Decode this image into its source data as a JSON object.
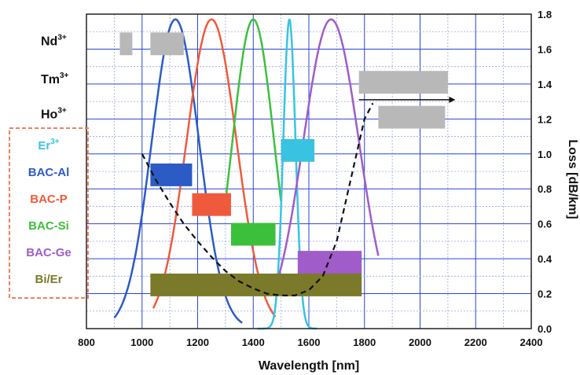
{
  "chart_data": {
    "type": "line",
    "xlabel": "Wavelength [nm]",
    "ylabel": "Loss [dB/km]",
    "xlim": [
      800,
      2400
    ],
    "ylim": [
      0.0,
      1.8
    ],
    "x_ticks": [
      "800",
      "1000",
      "1200",
      "1400",
      "1600",
      "1800",
      "2000",
      "2200",
      "2400"
    ],
    "y_ticks": [
      "0.0",
      "0.2",
      "0.4",
      "0.6",
      "0.8",
      "1.0",
      "1.2",
      "1.4",
      "1.6",
      "1.8"
    ],
    "grid": "on",
    "colors": {
      "grid_major": "#2a44d6",
      "grid_minor": "#9aa6e0",
      "Er": "#39c3e0",
      "BAC-Al": "#2c5bc6",
      "BAC-P": "#f05a3c",
      "BAC-Si": "#3cc03c",
      "BAC-Ge": "#a05cc8",
      "Bi/Er": "#7a7a2a",
      "gray_bar": "#b8b8b8",
      "loss_curve": "#111111",
      "legend_border": "#f08060"
    },
    "ion_labels": [
      {
        "base": "Nd",
        "sup": "3+",
        "y": 1.65
      },
      {
        "base": "Tm",
        "sup": "3+",
        "y": 1.43
      },
      {
        "base": "Ho",
        "sup": "3+",
        "y": 1.23
      }
    ],
    "legend": [
      {
        "base": "Er",
        "sup": "3+",
        "color_key": "Er"
      },
      {
        "base": "BAC-Al",
        "sup": "",
        "color_key": "BAC-Al"
      },
      {
        "base": "BAC-P",
        "sup": "",
        "color_key": "BAC-P"
      },
      {
        "base": "BAC-Si",
        "sup": "",
        "color_key": "BAC-Si"
      },
      {
        "base": "BAC-Ge",
        "sup": "",
        "color_key": "BAC-Ge"
      },
      {
        "base": "Bi/Er",
        "sup": "",
        "color_key": "Bi/Er"
      }
    ],
    "gray_bands": [
      {
        "name": "Nd-1",
        "x0": 920,
        "x1": 965,
        "y": 1.63
      },
      {
        "name": "Nd-2",
        "x0": 1030,
        "x1": 1150,
        "y": 1.63
      },
      {
        "name": "Tm",
        "x0": 1780,
        "x1": 2100,
        "y": 1.41
      },
      {
        "name": "Ho",
        "x0": 1850,
        "x1": 2090,
        "y": 1.21
      }
    ],
    "colored_bands": [
      {
        "name": "Er",
        "x0": 1500,
        "x1": 1620,
        "y": 1.02,
        "color_key": "Er"
      },
      {
        "name": "BAC-Al",
        "x0": 1030,
        "x1": 1180,
        "y": 0.88,
        "color_key": "BAC-Al"
      },
      {
        "name": "BAC-P",
        "x0": 1180,
        "x1": 1320,
        "y": 0.71,
        "color_key": "BAC-P"
      },
      {
        "name": "BAC-Si",
        "x0": 1320,
        "x1": 1480,
        "y": 0.54,
        "color_key": "BAC-Si"
      },
      {
        "name": "BAC-Ge",
        "x0": 1560,
        "x1": 1790,
        "y": 0.38,
        "color_key": "BAC-Ge"
      },
      {
        "name": "Bi/Er",
        "x0": 1030,
        "x1": 1790,
        "y": 0.25,
        "color_key": "Bi/Er"
      }
    ],
    "band_thickness": 0.13,
    "arrow": {
      "x0": 1780,
      "x1": 2110,
      "y": 1.31
    },
    "emission_peaks": [
      {
        "name": "BAC-Al",
        "center": 1120,
        "width": 85,
        "x0": 900,
        "x1": 1360,
        "color_key": "BAC-Al"
      },
      {
        "name": "BAC-P",
        "center": 1250,
        "width": 90,
        "x0": 1040,
        "x1": 1480,
        "color_key": "BAC-P"
      },
      {
        "name": "BAC-Si",
        "center": 1400,
        "width": 75,
        "x0": 1300,
        "x1": 1500,
        "color_key": "BAC-Si"
      },
      {
        "name": "Er",
        "center": 1530,
        "width": 22,
        "x0": 1415,
        "x1": 1630,
        "color_key": "Er"
      },
      {
        "name": "BAC-Ge",
        "center": 1680,
        "width": 100,
        "x0": 1490,
        "x1": 1850,
        "color_key": "BAC-Ge"
      }
    ],
    "peak_height": 1.77,
    "loss_curve": {
      "x": [
        1000,
        1050,
        1100,
        1150,
        1200,
        1250,
        1300,
        1350,
        1400,
        1450,
        1500,
        1550,
        1600,
        1650,
        1700,
        1750,
        1800,
        1830
      ],
      "y": [
        1.0,
        0.85,
        0.72,
        0.6,
        0.5,
        0.41,
        0.33,
        0.27,
        0.23,
        0.2,
        0.19,
        0.19,
        0.22,
        0.3,
        0.5,
        0.85,
        1.2,
        1.29
      ]
    }
  }
}
